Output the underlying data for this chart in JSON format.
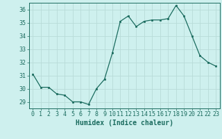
{
  "x": [
    0,
    1,
    2,
    3,
    4,
    5,
    6,
    7,
    8,
    9,
    10,
    11,
    12,
    13,
    14,
    15,
    16,
    17,
    18,
    19,
    20,
    21,
    22,
    23
  ],
  "y": [
    31.1,
    30.1,
    30.1,
    29.6,
    29.5,
    29.0,
    29.0,
    28.8,
    30.0,
    30.7,
    32.7,
    35.1,
    35.5,
    34.7,
    35.1,
    35.2,
    35.2,
    35.3,
    36.3,
    35.5,
    34.0,
    32.5,
    32.0,
    31.7
  ],
  "xlabel": "Humidex (Indice chaleur)",
  "ylim": [
    28.5,
    36.5
  ],
  "xlim": [
    -0.5,
    23.5
  ],
  "yticks": [
    29,
    30,
    31,
    32,
    33,
    34,
    35,
    36
  ],
  "xticks": [
    0,
    1,
    2,
    3,
    4,
    5,
    6,
    7,
    8,
    9,
    10,
    11,
    12,
    13,
    14,
    15,
    16,
    17,
    18,
    19,
    20,
    21,
    22,
    23
  ],
  "line_color": "#1a6b5e",
  "marker_color": "#1a6b5e",
  "bg_color": "#cef0ee",
  "grid_color": "#b8dbd8",
  "tick_label_color": "#1a6b5e",
  "xlabel_color": "#1a6b5e",
  "xlabel_fontsize": 7,
  "tick_fontsize": 6
}
